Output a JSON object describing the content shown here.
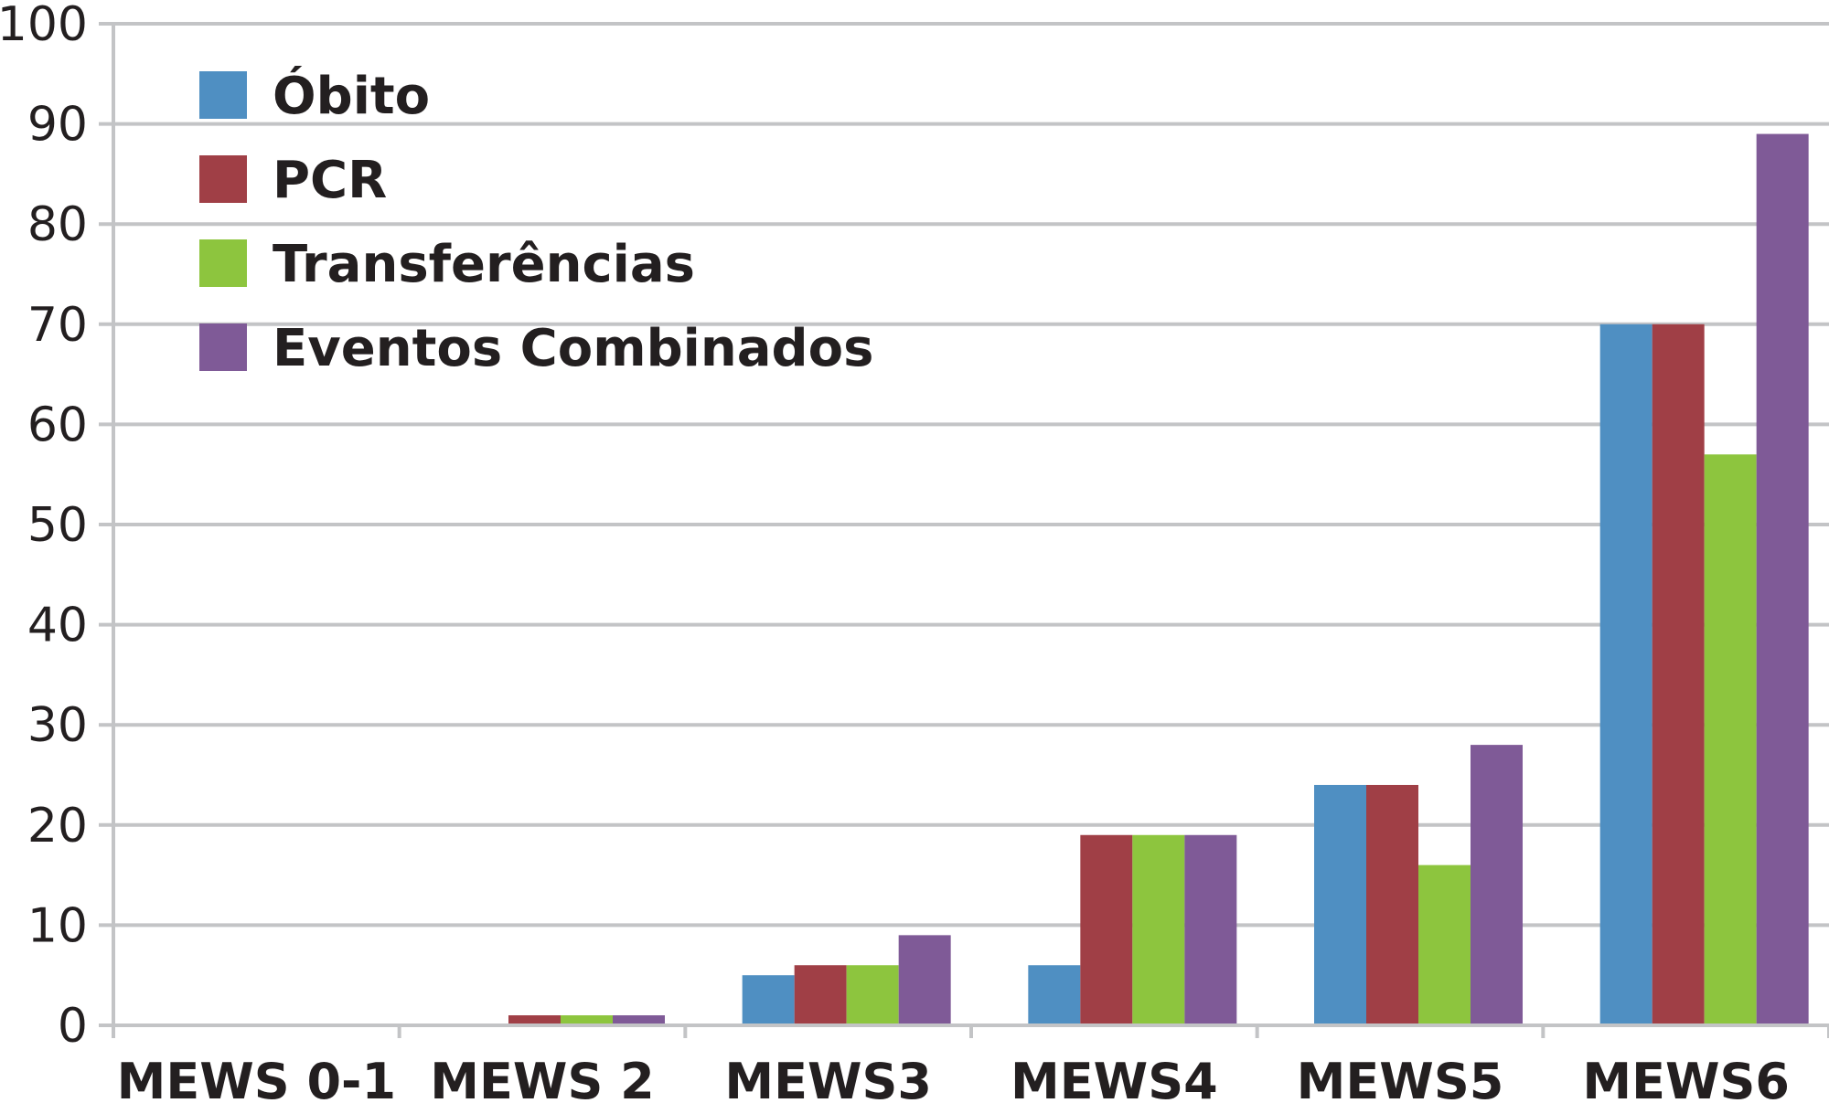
{
  "chart_data": {
    "type": "bar",
    "categories": [
      "MEWS 0-1",
      "MEWS 2",
      "MEWS3",
      "MEWS4",
      "MEWS5",
      "MEWS6"
    ],
    "series": [
      {
        "name": "Óbito",
        "color": "#4f8fc2",
        "values": [
          0,
          0,
          5,
          6,
          24,
          70
        ]
      },
      {
        "name": "PCR",
        "color": "#a03f46",
        "values": [
          0,
          1,
          6,
          19,
          24,
          70
        ]
      },
      {
        "name": "Transferências",
        "color": "#8dc53e",
        "values": [
          0,
          1,
          6,
          19,
          16,
          57
        ]
      },
      {
        "name": "Eventos Combinados",
        "color": "#7f5a97",
        "values": [
          0,
          1,
          9,
          19,
          28,
          89
        ]
      }
    ],
    "ylim": [
      0,
      100
    ],
    "yticks": [
      "0",
      "10",
      "20",
      "30",
      "40",
      "50",
      "60",
      "70",
      "80",
      "90",
      "100"
    ],
    "grid": true,
    "legend_position": "top-left"
  }
}
